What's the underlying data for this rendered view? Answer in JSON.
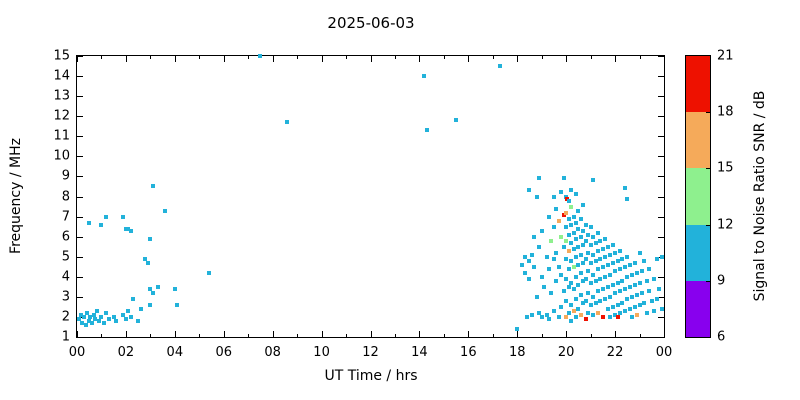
{
  "chart_data": {
    "type": "scatter",
    "title": "2025-06-03",
    "xlabel": "UT Time / hrs",
    "ylabel": "Frequency / MHz",
    "xlim": [
      0,
      24
    ],
    "ylim": [
      1,
      15
    ],
    "grid": false,
    "x_ticks": [
      {
        "value": 0,
        "label": "00"
      },
      {
        "value": 2,
        "label": "02"
      },
      {
        "value": 4,
        "label": "04"
      },
      {
        "value": 6,
        "label": "06"
      },
      {
        "value": 8,
        "label": "08"
      },
      {
        "value": 10,
        "label": "10"
      },
      {
        "value": 12,
        "label": "12"
      },
      {
        "value": 14,
        "label": "14"
      },
      {
        "value": 16,
        "label": "16"
      },
      {
        "value": 18,
        "label": "18"
      },
      {
        "value": 20,
        "label": "20"
      },
      {
        "value": 22,
        "label": "22"
      },
      {
        "value": 24,
        "label": "00"
      }
    ],
    "y_ticks": [
      1,
      2,
      3,
      4,
      5,
      6,
      7,
      8,
      9,
      10,
      11,
      12,
      13,
      14,
      15
    ],
    "colorbar": {
      "label": "Signal to Noise Ratio SNR / dB",
      "min": 6,
      "max": 21,
      "ticks": [
        6,
        9,
        12,
        15,
        18,
        21
      ],
      "segments": [
        {
          "from": 6,
          "to": 9,
          "color": "#8800ee"
        },
        {
          "from": 9,
          "to": 12,
          "color": "#22b2da"
        },
        {
          "from": 12,
          "to": 15,
          "color": "#8ef08e"
        },
        {
          "from": 15,
          "to": 18,
          "color": "#f5aa5a"
        },
        {
          "from": 18,
          "to": 21,
          "color": "#ee1100"
        }
      ]
    },
    "points_format": [
      "time_hrs",
      "freq_MHz",
      "snr_dB"
    ],
    "points": [
      [
        0.1,
        1.9,
        10
      ],
      [
        0.15,
        2.1,
        10
      ],
      [
        0.2,
        1.7,
        10
      ],
      [
        0.3,
        2.0,
        10
      ],
      [
        0.35,
        1.6,
        10
      ],
      [
        0.4,
        2.2,
        10
      ],
      [
        0.5,
        1.8,
        10
      ],
      [
        0.55,
        2.0,
        10
      ],
      [
        0.6,
        1.7,
        10
      ],
      [
        0.7,
        2.1,
        10
      ],
      [
        0.75,
        1.9,
        10
      ],
      [
        0.8,
        2.3,
        10
      ],
      [
        0.9,
        1.8,
        10
      ],
      [
        1.0,
        2.0,
        10
      ],
      [
        1.1,
        1.7,
        10
      ],
      [
        1.2,
        2.2,
        10
      ],
      [
        1.3,
        1.9,
        10
      ],
      [
        1.5,
        2.0,
        10
      ],
      [
        1.6,
        1.8,
        10
      ],
      [
        1.9,
        2.1,
        10
      ],
      [
        2.0,
        1.9,
        10
      ],
      [
        2.1,
        2.3,
        10
      ],
      [
        2.2,
        2.0,
        10
      ],
      [
        2.5,
        1.8,
        10
      ],
      [
        2.6,
        2.4,
        10
      ],
      [
        3.0,
        2.6,
        10
      ],
      [
        2.3,
        2.9,
        10
      ],
      [
        0.5,
        6.7,
        10
      ],
      [
        1.0,
        6.6,
        10
      ],
      [
        1.2,
        7.0,
        10
      ],
      [
        1.9,
        7.0,
        10
      ],
      [
        2.0,
        6.4,
        10
      ],
      [
        2.1,
        6.4,
        10
      ],
      [
        2.2,
        6.3,
        10
      ],
      [
        3.1,
        8.5,
        10
      ],
      [
        3.6,
        7.3,
        10
      ],
      [
        3.0,
        5.9,
        10
      ],
      [
        2.8,
        4.9,
        10
      ],
      [
        2.9,
        4.7,
        10
      ],
      [
        3.0,
        3.4,
        10
      ],
      [
        3.1,
        3.2,
        10
      ],
      [
        3.3,
        3.5,
        10
      ],
      [
        4.0,
        3.4,
        10
      ],
      [
        4.1,
        2.6,
        10
      ],
      [
        5.4,
        4.2,
        10
      ],
      [
        7.5,
        15.0,
        10
      ],
      [
        8.6,
        11.7,
        10
      ],
      [
        14.2,
        14.0,
        10
      ],
      [
        14.3,
        11.3,
        10
      ],
      [
        15.5,
        11.8,
        10
      ],
      [
        17.3,
        14.5,
        10
      ],
      [
        18.0,
        1.4,
        10
      ],
      [
        18.2,
        4.6,
        10
      ],
      [
        18.3,
        5.0,
        10
      ],
      [
        18.3,
        4.2,
        10
      ],
      [
        18.4,
        2.0,
        10
      ],
      [
        18.5,
        4.8,
        10
      ],
      [
        18.5,
        3.9,
        10
      ],
      [
        18.5,
        8.3,
        10
      ],
      [
        18.6,
        5.1,
        10
      ],
      [
        18.6,
        2.1,
        10
      ],
      [
        18.7,
        4.5,
        10
      ],
      [
        18.7,
        6.0,
        10
      ],
      [
        18.8,
        8.0,
        10
      ],
      [
        18.8,
        3.0,
        10
      ],
      [
        18.9,
        5.5,
        10
      ],
      [
        18.9,
        2.2,
        10
      ],
      [
        18.9,
        8.9,
        10
      ],
      [
        19.0,
        4.0,
        10
      ],
      [
        19.0,
        2.0,
        10
      ],
      [
        19.0,
        6.3,
        10
      ],
      [
        19.1,
        3.5,
        10
      ],
      [
        19.2,
        5.0,
        12
      ],
      [
        19.2,
        2.1,
        10
      ],
      [
        19.3,
        7.0,
        10
      ],
      [
        19.3,
        4.4,
        10
      ],
      [
        19.3,
        1.9,
        10
      ],
      [
        19.4,
        5.8,
        13
      ],
      [
        19.4,
        3.2,
        10
      ],
      [
        19.5,
        8.0,
        10
      ],
      [
        19.5,
        6.5,
        10
      ],
      [
        19.5,
        4.9,
        10
      ],
      [
        19.5,
        2.3,
        10
      ],
      [
        19.6,
        7.4,
        12
      ],
      [
        19.6,
        5.2,
        10
      ],
      [
        19.6,
        3.8,
        10
      ],
      [
        19.7,
        6.8,
        16
      ],
      [
        19.7,
        4.5,
        10
      ],
      [
        19.7,
        2.0,
        10
      ],
      [
        19.8,
        8.2,
        10
      ],
      [
        19.8,
        6.0,
        13
      ],
      [
        19.8,
        4.1,
        10
      ],
      [
        19.8,
        2.5,
        10
      ],
      [
        19.9,
        7.1,
        19
      ],
      [
        19.9,
        5.5,
        10
      ],
      [
        19.9,
        3.3,
        10
      ],
      [
        19.9,
        8.9,
        12
      ],
      [
        20.0,
        8.0,
        12
      ],
      [
        20.0,
        7.2,
        16
      ],
      [
        20.0,
        6.5,
        10
      ],
      [
        20.0,
        5.8,
        13
      ],
      [
        20.0,
        4.9,
        10
      ],
      [
        20.0,
        3.9,
        10
      ],
      [
        20.0,
        2.8,
        10
      ],
      [
        20.0,
        2.0,
        16
      ],
      [
        20.05,
        7.9,
        20
      ],
      [
        20.1,
        7.8,
        10
      ],
      [
        20.1,
        6.9,
        12
      ],
      [
        20.1,
        6.1,
        10
      ],
      [
        20.1,
        5.3,
        16
      ],
      [
        20.1,
        4.4,
        10
      ],
      [
        20.1,
        3.5,
        12
      ],
      [
        20.1,
        2.2,
        10
      ],
      [
        20.2,
        8.3,
        10
      ],
      [
        20.2,
        7.5,
        13
      ],
      [
        20.2,
        6.6,
        10
      ],
      [
        20.2,
        5.7,
        10
      ],
      [
        20.2,
        4.8,
        12
      ],
      [
        20.2,
        3.7,
        10
      ],
      [
        20.2,
        2.6,
        10
      ],
      [
        20.2,
        1.8,
        10
      ],
      [
        20.3,
        7.0,
        10
      ],
      [
        20.3,
        6.2,
        10
      ],
      [
        20.3,
        5.4,
        10
      ],
      [
        20.3,
        4.5,
        13
      ],
      [
        20.3,
        3.4,
        10
      ],
      [
        20.3,
        2.3,
        16
      ],
      [
        20.4,
        8.1,
        10
      ],
      [
        20.4,
        6.7,
        10
      ],
      [
        20.4,
        5.9,
        10
      ],
      [
        20.4,
        5.0,
        10
      ],
      [
        20.4,
        4.0,
        10
      ],
      [
        20.4,
        2.9,
        10
      ],
      [
        20.4,
        2.0,
        10
      ],
      [
        20.5,
        7.3,
        12
      ],
      [
        20.5,
        6.4,
        10
      ],
      [
        20.5,
        5.5,
        10
      ],
      [
        20.5,
        4.6,
        10
      ],
      [
        20.5,
        3.6,
        10
      ],
      [
        20.5,
        2.4,
        12
      ],
      [
        20.6,
        6.9,
        10
      ],
      [
        20.6,
        6.0,
        10
      ],
      [
        20.6,
        5.1,
        10
      ],
      [
        20.6,
        4.2,
        10
      ],
      [
        20.6,
        3.1,
        10
      ],
      [
        20.6,
        2.1,
        16
      ],
      [
        20.7,
        7.6,
        10
      ],
      [
        20.7,
        6.3,
        10
      ],
      [
        20.7,
        5.6,
        10
      ],
      [
        20.7,
        4.7,
        10
      ],
      [
        20.7,
        3.8,
        10
      ],
      [
        20.7,
        2.7,
        10
      ],
      [
        20.8,
        6.6,
        10
      ],
      [
        20.8,
        5.8,
        10
      ],
      [
        20.8,
        4.9,
        10
      ],
      [
        20.8,
        3.9,
        10
      ],
      [
        20.8,
        2.8,
        10
      ],
      [
        20.8,
        1.9,
        19
      ],
      [
        20.9,
        6.1,
        10
      ],
      [
        20.9,
        5.2,
        10
      ],
      [
        20.9,
        4.3,
        10
      ],
      [
        20.9,
        3.2,
        10
      ],
      [
        20.9,
        2.2,
        10
      ],
      [
        21.0,
        6.5,
        10
      ],
      [
        21.0,
        5.6,
        10
      ],
      [
        21.0,
        4.7,
        10
      ],
      [
        21.0,
        3.7,
        10
      ],
      [
        21.0,
        2.6,
        10
      ],
      [
        21.1,
        8.8,
        10
      ],
      [
        21.1,
        6.0,
        10
      ],
      [
        21.1,
        5.1,
        10
      ],
      [
        21.1,
        4.1,
        10
      ],
      [
        21.1,
        3.0,
        10
      ],
      [
        21.1,
        2.1,
        10
      ],
      [
        21.2,
        5.7,
        10
      ],
      [
        21.2,
        4.8,
        12
      ],
      [
        21.2,
        3.8,
        10
      ],
      [
        21.2,
        2.7,
        10
      ],
      [
        21.3,
        6.2,
        10
      ],
      [
        21.3,
        5.3,
        10
      ],
      [
        21.3,
        4.4,
        10
      ],
      [
        21.3,
        3.3,
        10
      ],
      [
        21.3,
        2.2,
        16
      ],
      [
        21.4,
        5.8,
        10
      ],
      [
        21.4,
        4.9,
        10
      ],
      [
        21.4,
        3.9,
        10
      ],
      [
        21.4,
        2.8,
        10
      ],
      [
        21.5,
        5.4,
        10
      ],
      [
        21.5,
        4.5,
        10
      ],
      [
        21.5,
        3.4,
        10
      ],
      [
        21.5,
        2.0,
        19
      ],
      [
        21.6,
        5.9,
        10
      ],
      [
        21.6,
        5.0,
        10
      ],
      [
        21.6,
        4.0,
        10
      ],
      [
        21.6,
        2.9,
        10
      ],
      [
        21.7,
        5.5,
        10
      ],
      [
        21.7,
        4.6,
        10
      ],
      [
        21.7,
        3.5,
        10
      ],
      [
        21.7,
        2.4,
        10
      ],
      [
        21.8,
        5.1,
        10
      ],
      [
        21.8,
        4.1,
        10
      ],
      [
        21.8,
        3.0,
        12
      ],
      [
        21.8,
        2.0,
        10
      ],
      [
        21.9,
        5.6,
        10
      ],
      [
        21.9,
        4.7,
        10
      ],
      [
        21.9,
        3.6,
        10
      ],
      [
        21.9,
        2.5,
        10
      ],
      [
        22.0,
        5.2,
        10
      ],
      [
        22.0,
        4.3,
        10
      ],
      [
        22.0,
        3.2,
        10
      ],
      [
        22.0,
        2.1,
        10
      ],
      [
        22.1,
        4.8,
        10
      ],
      [
        22.1,
        3.7,
        10
      ],
      [
        22.1,
        2.6,
        10
      ],
      [
        22.1,
        2.0,
        19
      ],
      [
        22.2,
        5.3,
        10
      ],
      [
        22.2,
        4.4,
        10
      ],
      [
        22.2,
        3.3,
        10
      ],
      [
        22.2,
        2.2,
        10
      ],
      [
        22.3,
        4.9,
        10
      ],
      [
        22.3,
        3.8,
        10
      ],
      [
        22.3,
        2.7,
        10
      ],
      [
        22.4,
        4.5,
        10
      ],
      [
        22.4,
        3.4,
        10
      ],
      [
        22.4,
        2.3,
        10
      ],
      [
        22.4,
        8.4,
        10
      ],
      [
        22.5,
        5.0,
        10
      ],
      [
        22.5,
        4.0,
        10
      ],
      [
        22.5,
        2.9,
        10
      ],
      [
        22.5,
        7.9,
        10
      ],
      [
        22.6,
        4.6,
        10
      ],
      [
        22.6,
        3.5,
        10
      ],
      [
        22.6,
        2.4,
        10
      ],
      [
        22.7,
        4.1,
        10
      ],
      [
        22.7,
        3.0,
        10
      ],
      [
        22.7,
        2.0,
        10
      ],
      [
        22.8,
        4.7,
        10
      ],
      [
        22.8,
        3.6,
        10
      ],
      [
        22.8,
        2.5,
        10
      ],
      [
        22.9,
        4.2,
        10
      ],
      [
        22.9,
        3.1,
        10
      ],
      [
        22.9,
        2.1,
        16
      ],
      [
        23.0,
        5.2,
        10
      ],
      [
        23.0,
        3.7,
        10
      ],
      [
        23.0,
        2.6,
        10
      ],
      [
        23.1,
        4.3,
        10
      ],
      [
        23.1,
        3.2,
        10
      ],
      [
        23.2,
        4.8,
        10
      ],
      [
        23.2,
        2.7,
        10
      ],
      [
        23.3,
        3.8,
        10
      ],
      [
        23.3,
        2.2,
        10
      ],
      [
        23.4,
        4.4,
        10
      ],
      [
        23.4,
        3.3,
        10
      ],
      [
        23.5,
        2.8,
        10
      ],
      [
        23.6,
        3.9,
        10
      ],
      [
        23.6,
        2.3,
        10
      ],
      [
        23.7,
        4.9,
        10
      ],
      [
        23.7,
        2.9,
        10
      ],
      [
        23.8,
        3.4,
        10
      ],
      [
        23.9,
        2.4,
        10
      ],
      [
        23.9,
        5.0,
        10
      ]
    ]
  }
}
